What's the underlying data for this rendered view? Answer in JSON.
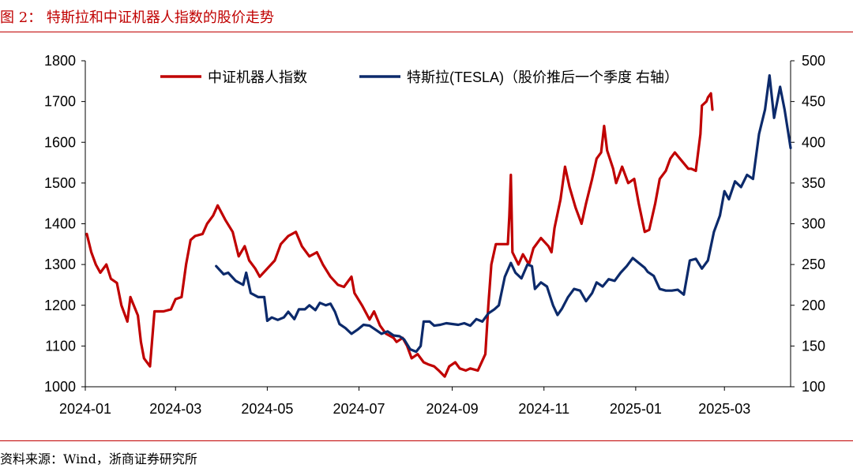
{
  "figure": {
    "title": "图 2：  特斯拉和中证机器人指数的股价走势",
    "source": "资料来源：Wind，浙商证券研究所"
  },
  "colors": {
    "red_series": "#c00000",
    "blue_series": "#0c2a6b",
    "rule": "#c00000"
  },
  "chart_data": {
    "type": "line",
    "xlabel": "",
    "ylabel": "",
    "x_range": [
      "2024-01-01",
      "2025-04-14"
    ],
    "x_ticks": [
      "2024-01",
      "2024-03",
      "2024-05",
      "2024-07",
      "2024-09",
      "2024-11",
      "2025-01",
      "2025-03"
    ],
    "ylim_left": [
      1000,
      1800
    ],
    "yticks_left": [
      "1000",
      "1100",
      "1200",
      "1300",
      "1400",
      "1500",
      "1600",
      "1700",
      "1800"
    ],
    "ylim_right": [
      100,
      500
    ],
    "yticks_right": [
      "100",
      "150",
      "200",
      "250",
      "300",
      "350",
      "400",
      "450",
      "500"
    ],
    "grid": false,
    "legend_position": "top",
    "series": [
      {
        "name": "中证机器人指数",
        "axis": "left",
        "color": "#c00000",
        "points": [
          [
            "2024-01-02",
            1375
          ],
          [
            "2024-01-05",
            1330
          ],
          [
            "2024-01-08",
            1300
          ],
          [
            "2024-01-11",
            1280
          ],
          [
            "2024-01-15",
            1300
          ],
          [
            "2024-01-18",
            1265
          ],
          [
            "2024-01-22",
            1255
          ],
          [
            "2024-01-25",
            1200
          ],
          [
            "2024-01-29",
            1160
          ],
          [
            "2024-01-31",
            1220
          ],
          [
            "2024-02-05",
            1175
          ],
          [
            "2024-02-07",
            1110
          ],
          [
            "2024-02-09",
            1070
          ],
          [
            "2024-02-13",
            1050
          ],
          [
            "2024-02-16",
            1185
          ],
          [
            "2024-02-22",
            1185
          ],
          [
            "2024-02-27",
            1190
          ],
          [
            "2024-03-01",
            1215
          ],
          [
            "2024-03-05",
            1220
          ],
          [
            "2024-03-08",
            1300
          ],
          [
            "2024-03-11",
            1360
          ],
          [
            "2024-03-14",
            1370
          ],
          [
            "2024-03-19",
            1375
          ],
          [
            "2024-03-22",
            1400
          ],
          [
            "2024-03-26",
            1420
          ],
          [
            "2024-03-29",
            1445
          ],
          [
            "2024-04-03",
            1410
          ],
          [
            "2024-04-08",
            1380
          ],
          [
            "2024-04-10",
            1350
          ],
          [
            "2024-04-12",
            1320
          ],
          [
            "2024-04-16",
            1345
          ],
          [
            "2024-04-19",
            1310
          ],
          [
            "2024-04-23",
            1290
          ],
          [
            "2024-04-26",
            1270
          ],
          [
            "2024-05-06",
            1310
          ],
          [
            "2024-05-10",
            1350
          ],
          [
            "2024-05-15",
            1370
          ],
          [
            "2024-05-20",
            1380
          ],
          [
            "2024-05-24",
            1345
          ],
          [
            "2024-05-29",
            1320
          ],
          [
            "2024-06-03",
            1330
          ],
          [
            "2024-06-07",
            1300
          ],
          [
            "2024-06-12",
            1270
          ],
          [
            "2024-06-17",
            1250
          ],
          [
            "2024-06-21",
            1245
          ],
          [
            "2024-06-26",
            1270
          ],
          [
            "2024-06-28",
            1230
          ],
          [
            "2024-07-03",
            1200
          ],
          [
            "2024-07-08",
            1165
          ],
          [
            "2024-07-11",
            1185
          ],
          [
            "2024-07-15",
            1150
          ],
          [
            "2024-07-19",
            1130
          ],
          [
            "2024-07-24",
            1120
          ],
          [
            "2024-07-26",
            1110
          ],
          [
            "2024-07-30",
            1120
          ],
          [
            "2024-08-02",
            1100
          ],
          [
            "2024-08-05",
            1070
          ],
          [
            "2024-08-09",
            1080
          ],
          [
            "2024-08-13",
            1060
          ],
          [
            "2024-08-16",
            1055
          ],
          [
            "2024-08-20",
            1050
          ],
          [
            "2024-08-23",
            1040
          ],
          [
            "2024-08-27",
            1025
          ],
          [
            "2024-08-30",
            1050
          ],
          [
            "2024-09-03",
            1060
          ],
          [
            "2024-09-06",
            1045
          ],
          [
            "2024-09-10",
            1040
          ],
          [
            "2024-09-13",
            1045
          ],
          [
            "2024-09-18",
            1040
          ],
          [
            "2024-09-23",
            1080
          ],
          [
            "2024-09-25",
            1200
          ],
          [
            "2024-09-27",
            1300
          ],
          [
            "2024-09-30",
            1350
          ],
          [
            "2024-10-08",
            1350
          ],
          [
            "2024-10-09",
            1420
          ],
          [
            "2024-10-10",
            1520
          ],
          [
            "2024-10-11",
            1330
          ],
          [
            "2024-10-15",
            1300
          ],
          [
            "2024-10-18",
            1325
          ],
          [
            "2024-10-22",
            1300
          ],
          [
            "2024-10-25",
            1340
          ],
          [
            "2024-10-30",
            1365
          ],
          [
            "2024-11-04",
            1345
          ],
          [
            "2024-11-06",
            1330
          ],
          [
            "2024-11-08",
            1390
          ],
          [
            "2024-11-12",
            1460
          ],
          [
            "2024-11-15",
            1540
          ],
          [
            "2024-11-18",
            1490
          ],
          [
            "2024-11-22",
            1440
          ],
          [
            "2024-11-26",
            1400
          ],
          [
            "2024-11-29",
            1450
          ],
          [
            "2024-12-03",
            1510
          ],
          [
            "2024-12-06",
            1560
          ],
          [
            "2024-12-09",
            1575
          ],
          [
            "2024-12-11",
            1640
          ],
          [
            "2024-12-13",
            1580
          ],
          [
            "2024-12-17",
            1535
          ],
          [
            "2024-12-19",
            1500
          ],
          [
            "2024-12-23",
            1540
          ],
          [
            "2024-12-27",
            1500
          ],
          [
            "2024-12-31",
            1510
          ],
          [
            "2025-01-03",
            1450
          ],
          [
            "2025-01-07",
            1380
          ],
          [
            "2025-01-10",
            1385
          ],
          [
            "2025-01-14",
            1450
          ],
          [
            "2025-01-17",
            1510
          ],
          [
            "2025-01-21",
            1530
          ],
          [
            "2025-01-24",
            1560
          ],
          [
            "2025-01-27",
            1575
          ],
          [
            "2025-02-05",
            1535
          ],
          [
            "2025-02-07",
            1535
          ],
          [
            "2025-02-10",
            1530
          ],
          [
            "2025-02-13",
            1620
          ],
          [
            "2025-02-14",
            1690
          ],
          [
            "2025-02-17",
            1700
          ],
          [
            "2025-02-18",
            1710
          ],
          [
            "2025-02-20",
            1720
          ],
          [
            "2025-02-21",
            1680
          ]
        ]
      },
      {
        "name": "特斯拉(TESLA)（股价推后一个季度 右轴）",
        "axis": "right",
        "color": "#0c2a6b",
        "points": [
          [
            "2024-03-28",
            248
          ],
          [
            "2024-04-02",
            238
          ],
          [
            "2024-04-05",
            240
          ],
          [
            "2024-04-10",
            230
          ],
          [
            "2024-04-15",
            225
          ],
          [
            "2024-04-17",
            240
          ],
          [
            "2024-04-20",
            215
          ],
          [
            "2024-04-25",
            210
          ],
          [
            "2024-04-29",
            210
          ],
          [
            "2024-05-01",
            181
          ],
          [
            "2024-05-04",
            185
          ],
          [
            "2024-05-08",
            182
          ],
          [
            "2024-05-12",
            185
          ],
          [
            "2024-05-15",
            192
          ],
          [
            "2024-05-19",
            183
          ],
          [
            "2024-05-22",
            195
          ],
          [
            "2024-05-26",
            195
          ],
          [
            "2024-05-29",
            200
          ],
          [
            "2024-06-02",
            194
          ],
          [
            "2024-06-05",
            203
          ],
          [
            "2024-06-09",
            200
          ],
          [
            "2024-06-12",
            202
          ],
          [
            "2024-06-15",
            192
          ],
          [
            "2024-06-18",
            177
          ],
          [
            "2024-06-22",
            172
          ],
          [
            "2024-06-26",
            165
          ],
          [
            "2024-06-30",
            170
          ],
          [
            "2024-07-04",
            176
          ],
          [
            "2024-07-08",
            175
          ],
          [
            "2024-07-12",
            170
          ],
          [
            "2024-07-16",
            165
          ],
          [
            "2024-07-20",
            168
          ],
          [
            "2024-07-24",
            163
          ],
          [
            "2024-07-28",
            162
          ],
          [
            "2024-07-31",
            158
          ],
          [
            "2024-08-04",
            146
          ],
          [
            "2024-08-08",
            143
          ],
          [
            "2024-08-11",
            150
          ],
          [
            "2024-08-13",
            180
          ],
          [
            "2024-08-17",
            180
          ],
          [
            "2024-08-20",
            175
          ],
          [
            "2024-08-24",
            176
          ],
          [
            "2024-08-28",
            178
          ],
          [
            "2024-09-01",
            177
          ],
          [
            "2024-09-05",
            176
          ],
          [
            "2024-09-09",
            178
          ],
          [
            "2024-09-13",
            175
          ],
          [
            "2024-09-17",
            183
          ],
          [
            "2024-09-21",
            180
          ],
          [
            "2024-09-25",
            190
          ],
          [
            "2024-09-29",
            195
          ],
          [
            "2024-10-02",
            200
          ],
          [
            "2024-10-06",
            235
          ],
          [
            "2024-10-10",
            252
          ],
          [
            "2024-10-13",
            240
          ],
          [
            "2024-10-17",
            233
          ],
          [
            "2024-10-21",
            250
          ],
          [
            "2024-10-24",
            248
          ],
          [
            "2024-10-26",
            220
          ],
          [
            "2024-10-30",
            228
          ],
          [
            "2024-11-03",
            223
          ],
          [
            "2024-11-07",
            200
          ],
          [
            "2024-11-10",
            188
          ],
          [
            "2024-11-13",
            196
          ],
          [
            "2024-11-17",
            210
          ],
          [
            "2024-11-21",
            220
          ],
          [
            "2024-11-25",
            218
          ],
          [
            "2024-11-29",
            205
          ],
          [
            "2024-12-03",
            215
          ],
          [
            "2024-12-06",
            228
          ],
          [
            "2024-12-10",
            223
          ],
          [
            "2024-12-14",
            232
          ],
          [
            "2024-12-18",
            230
          ],
          [
            "2024-12-22",
            240
          ],
          [
            "2024-12-26",
            248
          ],
          [
            "2024-12-30",
            258
          ],
          [
            "2025-01-03",
            252
          ],
          [
            "2025-01-07",
            246
          ],
          [
            "2025-01-09",
            241
          ],
          [
            "2025-01-13",
            236
          ],
          [
            "2025-01-17",
            220
          ],
          [
            "2025-01-21",
            218
          ],
          [
            "2025-01-25",
            218
          ],
          [
            "2025-01-29",
            219
          ],
          [
            "2025-02-02",
            213
          ],
          [
            "2025-02-06",
            255
          ],
          [
            "2025-02-10",
            257
          ],
          [
            "2025-02-14",
            245
          ],
          [
            "2025-02-18",
            255
          ],
          [
            "2025-02-22",
            290
          ],
          [
            "2025-02-26",
            310
          ],
          [
            "2025-03-01",
            340
          ],
          [
            "2025-03-04",
            330
          ],
          [
            "2025-03-08",
            352
          ],
          [
            "2025-03-12",
            345
          ],
          [
            "2025-03-16",
            360
          ],
          [
            "2025-03-20",
            355
          ],
          [
            "2025-03-24",
            410
          ],
          [
            "2025-03-28",
            440
          ],
          [
            "2025-03-31",
            482
          ],
          [
            "2025-04-03",
            430
          ],
          [
            "2025-04-07",
            468
          ],
          [
            "2025-04-10",
            440
          ],
          [
            "2025-04-13",
            405
          ],
          [
            "2025-04-14",
            393
          ]
        ]
      }
    ]
  }
}
